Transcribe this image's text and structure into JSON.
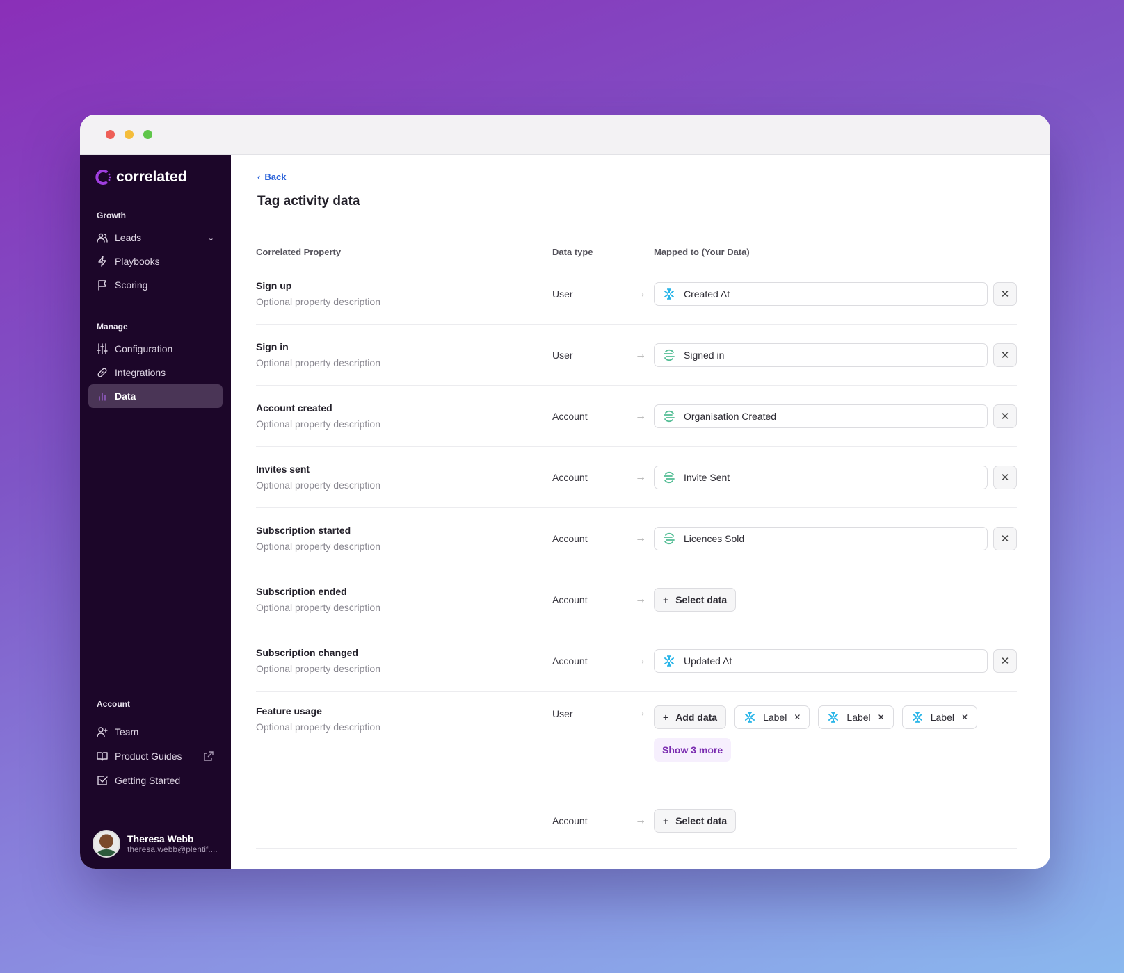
{
  "window": {
    "controls": [
      "close",
      "minimize",
      "maximize"
    ]
  },
  "sidebar": {
    "brand": "correlated",
    "sections": [
      {
        "title": "Growth",
        "items": [
          {
            "label": "Leads",
            "icon": "users-icon"
          },
          {
            "label": "Playbooks",
            "icon": "bolt-icon"
          },
          {
            "label": "Scoring",
            "icon": "flag-icon"
          }
        ]
      },
      {
        "title": "Manage",
        "items": [
          {
            "label": "Configuration",
            "icon": "sliders-icon"
          },
          {
            "label": "Integrations",
            "icon": "link-icon"
          },
          {
            "label": "Data",
            "icon": "bar-chart-icon",
            "active": true
          }
        ]
      },
      {
        "title": "Account",
        "items": [
          {
            "label": "Team",
            "icon": "user-plus-icon"
          },
          {
            "label": "Product Guides",
            "icon": "book-icon"
          },
          {
            "label": "Getting Started",
            "icon": "checkbox-icon"
          }
        ]
      }
    ],
    "user": {
      "name": "Theresa Webb",
      "email": "theresa.webb@plentif...."
    }
  },
  "header": {
    "back": "Back",
    "title": "Tag activity data"
  },
  "table": {
    "columns": [
      "Correlated Property",
      "Data type",
      "Mapped to (Your Data)"
    ],
    "rows": [
      {
        "name": "Sign up",
        "desc": "Optional property description",
        "type": "User",
        "mapped": "Created At",
        "source": "snowflake"
      },
      {
        "name": "Sign in",
        "desc": "Optional property description",
        "type": "User",
        "mapped": "Signed in",
        "source": "segment"
      },
      {
        "name": "Account created",
        "desc": "Optional property description",
        "type": "Account",
        "mapped": "Organisation Created",
        "source": "segment"
      },
      {
        "name": "Invites sent",
        "desc": "Optional property description",
        "type": "Account",
        "mapped": "Invite Sent",
        "source": "segment"
      },
      {
        "name": "Subscription started",
        "desc": "Optional property description",
        "type": "Account",
        "mapped": "Licences Sold",
        "source": "segment"
      },
      {
        "name": "Subscription ended",
        "desc": "Optional property description",
        "type": "Account",
        "select": "Select data"
      },
      {
        "name": "Subscription changed",
        "desc": "Optional property description",
        "type": "Account",
        "mapped": "Updated At",
        "source": "snowflake"
      }
    ],
    "feature": {
      "name": "Feature usage",
      "desc": "Optional property description",
      "type": "User",
      "add": "Add data",
      "chips": [
        "Label",
        "Label",
        "Label"
      ],
      "more": "Show 3 more",
      "type2": "Account",
      "select": "Select data"
    }
  },
  "colors": {
    "sidebar": "#1c0629",
    "accent": "#7a2cb0",
    "link": "#2b63d9",
    "snowflake": "#29b5e8",
    "segment": "#52bd94"
  }
}
